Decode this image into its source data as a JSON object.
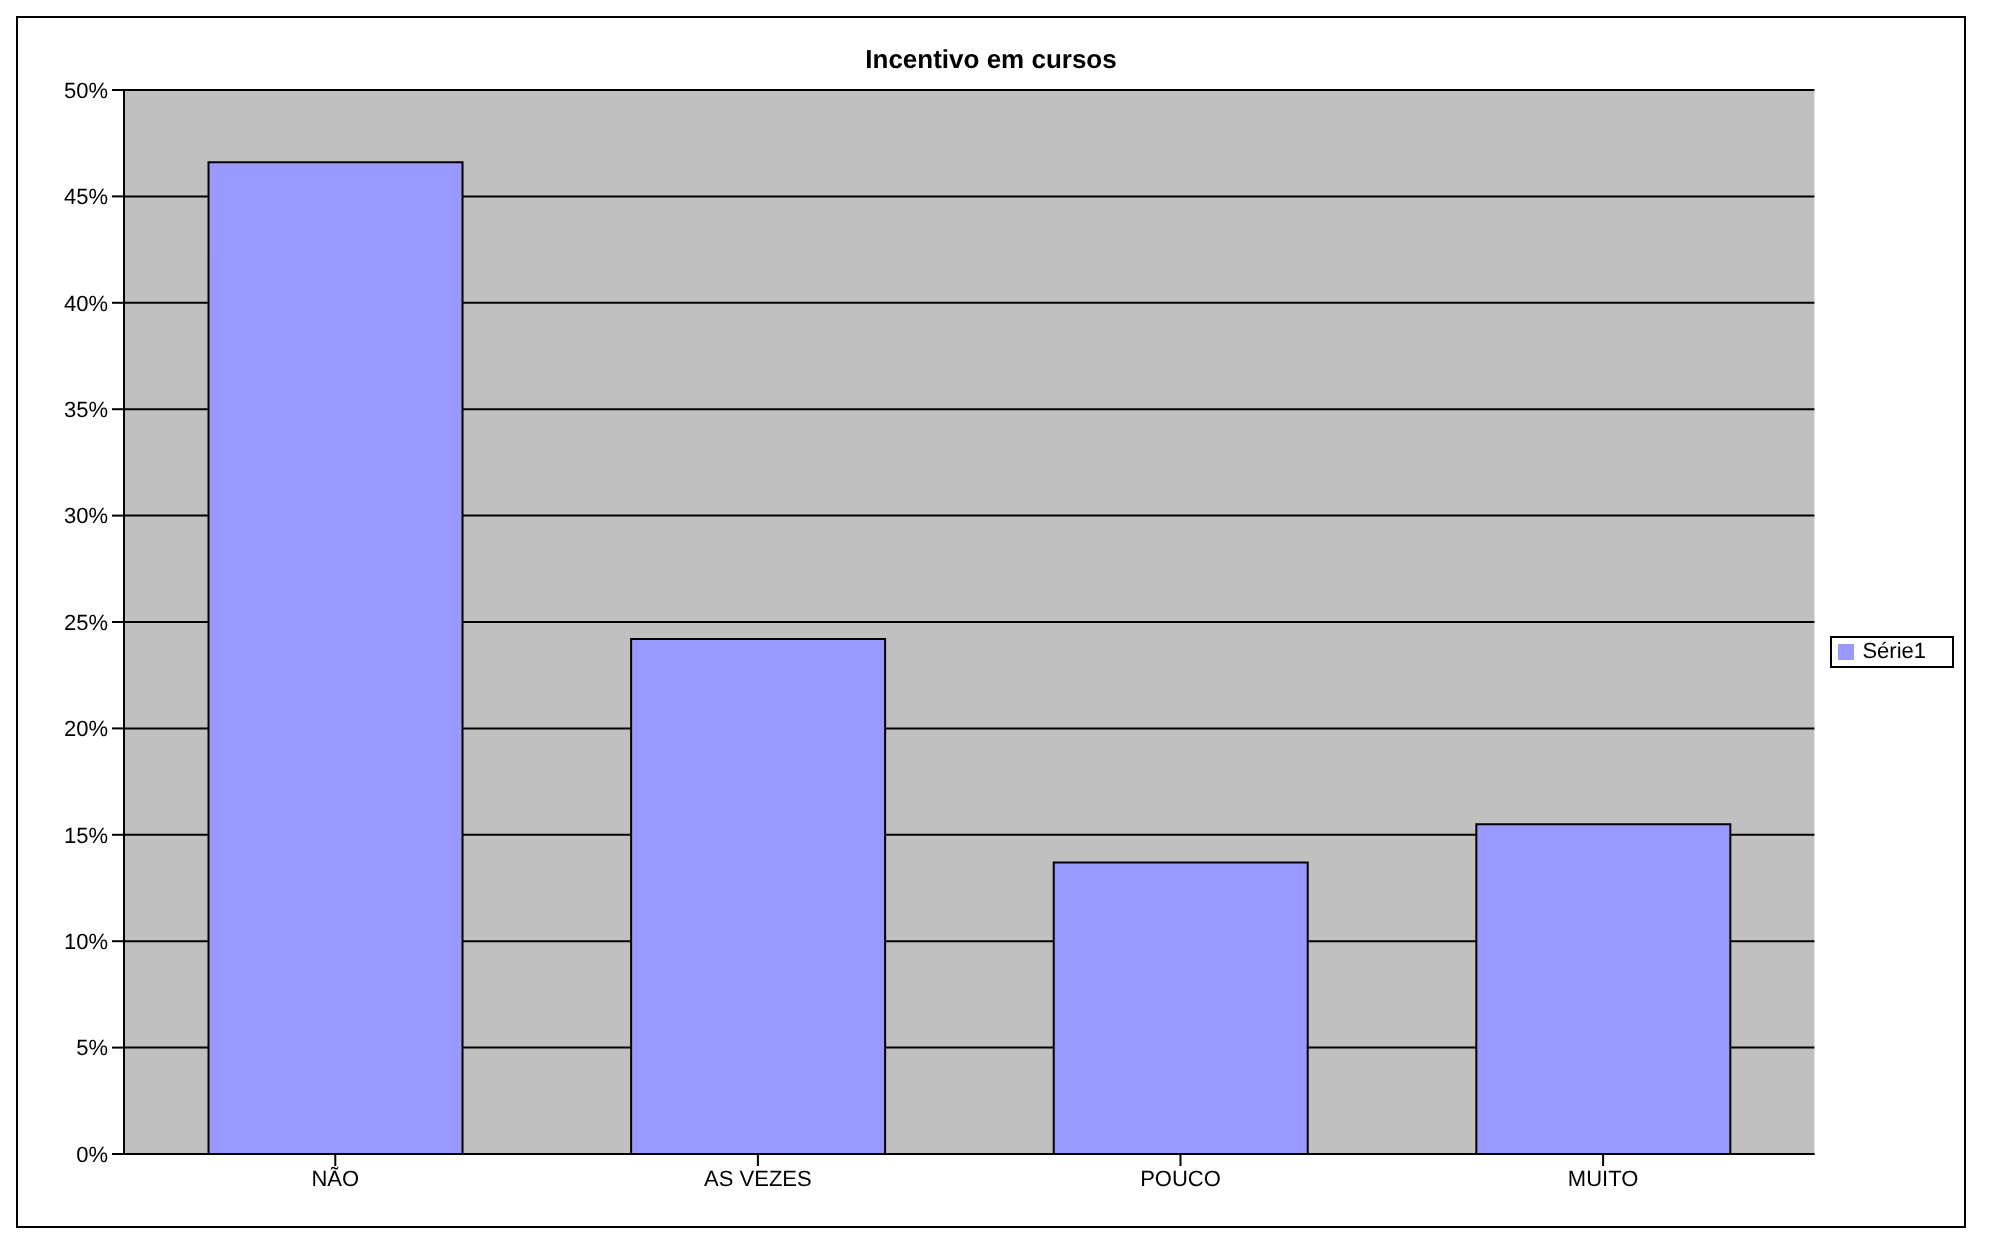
{
  "chart_data": {
    "type": "bar",
    "title": "Incentivo em cursos",
    "categories": [
      "NÃO",
      "AS VEZES",
      "POUCO",
      "MUITO"
    ],
    "series": [
      {
        "name": "Série1",
        "color": "#9999ff",
        "values": [
          46.6,
          24.2,
          13.7,
          15.5
        ]
      }
    ],
    "ylim": [
      0,
      50
    ],
    "yticks": [
      {
        "value": 0,
        "label": "0%"
      },
      {
        "value": 5,
        "label": "5%"
      },
      {
        "value": 10,
        "label": "10%"
      },
      {
        "value": 15,
        "label": "15%"
      },
      {
        "value": 20,
        "label": "20%"
      },
      {
        "value": 25,
        "label": "25%"
      },
      {
        "value": 30,
        "label": "30%"
      },
      {
        "value": 35,
        "label": "35%"
      },
      {
        "value": 40,
        "label": "40%"
      },
      {
        "value": 45,
        "label": "45%"
      },
      {
        "value": 50,
        "label": "50%"
      }
    ],
    "grid": "y",
    "legend": "right"
  }
}
